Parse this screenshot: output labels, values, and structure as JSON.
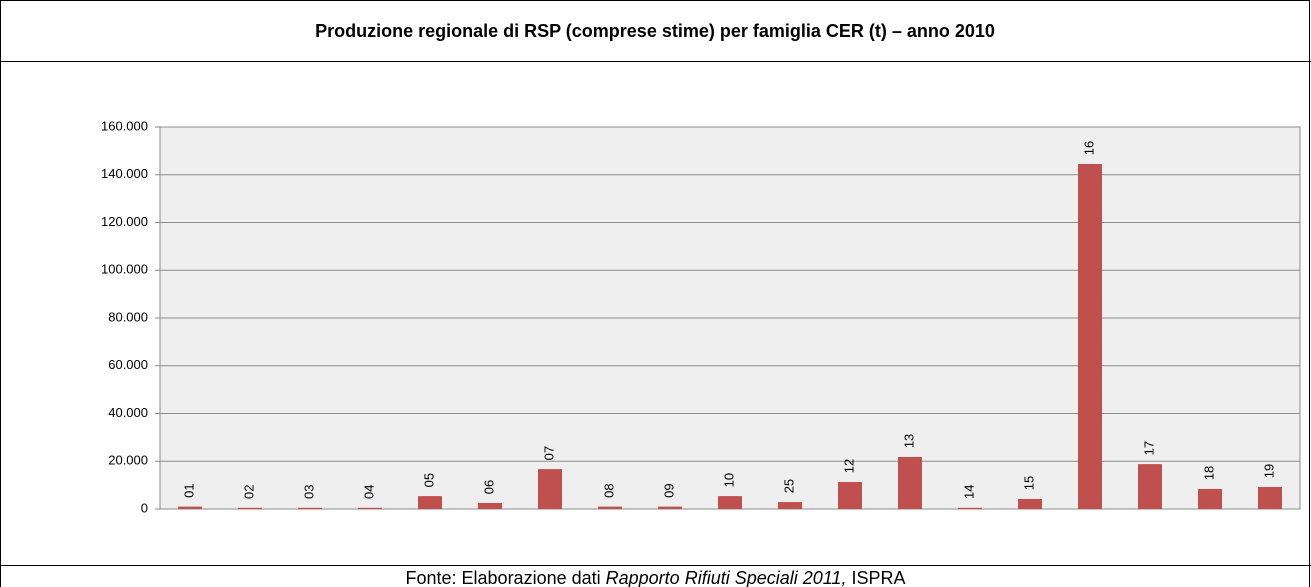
{
  "chart_data": {
    "type": "bar",
    "title": "Produzione regionale di RSP (comprese stime) per famiglia CER (t) – anno 2010",
    "categories": [
      "01",
      "02",
      "03",
      "04",
      "05",
      "06",
      "07",
      "08",
      "09",
      "10",
      "25",
      "12",
      "13",
      "14",
      "15",
      "16",
      "17",
      "18",
      "19"
    ],
    "values": [
      1000,
      500,
      500,
      500,
      5400,
      2500,
      16700,
      1000,
      1000,
      5400,
      2900,
      11300,
      21800,
      500,
      4200,
      144500,
      18800,
      8400,
      9200
    ],
    "color": "#c0504d",
    "ylim": [
      0,
      160000
    ],
    "yticks": [
      0,
      {
        "value": 20000,
        "label": "20.000"
      },
      {
        "value": 40000,
        "label": "40.000"
      },
      {
        "value": 60000,
        "label": "60.000"
      },
      {
        "value": 80000,
        "label": "80.000"
      },
      {
        "value": 100000,
        "label": "100.000"
      },
      {
        "value": 120000,
        "label": "120.000"
      },
      {
        "value": 140000,
        "label": "140.000"
      },
      {
        "value": 160000,
        "label": "160.000"
      }
    ],
    "grid": true
  },
  "source": {
    "prefix": "Fonte: Elaborazione dati ",
    "italic": "Rapporto Rifiuti Speciali 2011,",
    "suffix": " ISPRA"
  }
}
